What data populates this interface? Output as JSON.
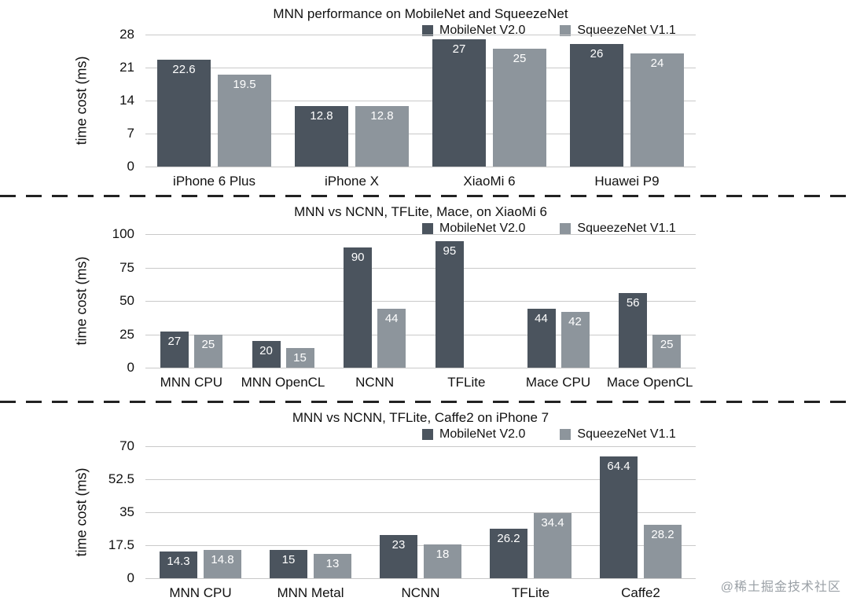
{
  "watermark": "@稀土掘金技术社区",
  "colors": {
    "mobilenet": "#4b545e",
    "squeezenet": "#8d959c",
    "grid": "#c9c9c9",
    "value_label": "#ffffff"
  },
  "chart_data": [
    {
      "type": "bar",
      "title": "MNN performance on MobileNet and SqueezeNet",
      "ylabel": "time cost (ms)",
      "ylim": [
        0,
        28
      ],
      "yticks": [
        0,
        7,
        14,
        21,
        28
      ],
      "grid": true,
      "legend_position": "top-right",
      "categories": [
        "iPhone 6 Plus",
        "iPhone X",
        "XiaoMi 6",
        "Huawei P9"
      ],
      "series": [
        {
          "name": "MobileNet V2.0",
          "color": "#4b545e",
          "values": [
            22.6,
            12.8,
            27,
            26
          ]
        },
        {
          "name": "SqueezeNet V1.1",
          "color": "#8d959c",
          "values": [
            19.5,
            12.8,
            25,
            24
          ]
        }
      ]
    },
    {
      "type": "bar",
      "title": "MNN vs NCNN, TFLite, Mace, on XiaoMi 6",
      "ylabel": "time cost (ms)",
      "ylim": [
        0,
        100
      ],
      "yticks": [
        0,
        25,
        50,
        75,
        100
      ],
      "grid": true,
      "legend_position": "top-right",
      "categories": [
        "MNN CPU",
        "MNN OpenCL",
        "NCNN",
        "TFLite",
        "Mace CPU",
        "Mace OpenCL"
      ],
      "series": [
        {
          "name": "MobileNet V2.0",
          "color": "#4b545e",
          "values": [
            27,
            20,
            90,
            95,
            44,
            56
          ]
        },
        {
          "name": "SqueezeNet V1.1",
          "color": "#8d959c",
          "values": [
            25,
            15,
            44,
            null,
            42,
            25
          ]
        }
      ]
    },
    {
      "type": "bar",
      "title": "MNN vs NCNN, TFLite, Caffe2 on iPhone 7",
      "ylabel": "time cost (ms)",
      "ylim": [
        0,
        70
      ],
      "yticks": [
        0,
        17.5,
        35,
        52.5,
        70
      ],
      "grid": true,
      "legend_position": "top-right",
      "categories": [
        "MNN CPU",
        "MNN Metal",
        "NCNN",
        "TFLite",
        "Caffe2"
      ],
      "series": [
        {
          "name": "MobileNet V2.0",
          "color": "#4b545e",
          "values": [
            14.3,
            15,
            23,
            26.2,
            64.4
          ]
        },
        {
          "name": "SqueezeNet V1.1",
          "color": "#8d959c",
          "values": [
            14.8,
            13,
            18,
            34.4,
            28.2
          ]
        }
      ]
    }
  ]
}
